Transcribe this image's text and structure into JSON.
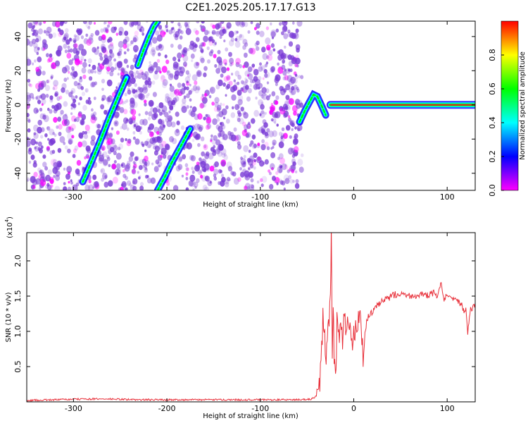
{
  "title": "C2E1.2025.205.17.17.G13",
  "chart_data": [
    {
      "type": "heatmap",
      "xlabel": "Height of straight line (km)",
      "ylabel": "Frequency (Hz)",
      "xlim": [
        -350,
        130
      ],
      "ylim": [
        -50,
        49
      ],
      "xticks": [
        "-300",
        "-200",
        "-100",
        "0",
        "100"
      ],
      "yticks": [
        "-40",
        "-20",
        "0",
        "20",
        "40"
      ],
      "colorbar": {
        "label": "Normalized spectral amplitude",
        "range": [
          0,
          1
        ],
        "ticks": [
          "0.0",
          "0.2",
          "0.4",
          "0.6",
          "0.8"
        ]
      },
      "noise_region_x": [
        -350,
        -55
      ],
      "ridges": [
        {
          "x": [
            -290,
            -282,
            -272,
            -262,
            -252,
            -243
          ],
          "y": [
            -45,
            -35,
            -22,
            -8,
            5,
            16
          ]
        },
        {
          "x": [
            -231,
            -225,
            -219,
            -214,
            -210
          ],
          "y": [
            23,
            32,
            40,
            46,
            49
          ]
        },
        {
          "x": [
            -210,
            -202,
            -195,
            -187,
            -180,
            -175
          ],
          "y": [
            -50,
            -42,
            -34,
            -26,
            -19,
            -14
          ]
        },
        {
          "x": [
            -58,
            -52,
            -47,
            -43,
            -39,
            -34,
            -30
          ],
          "y": [
            -10,
            -3,
            2,
            6,
            5,
            -1,
            -6
          ]
        },
        {
          "x": [
            -25,
            0,
            40,
            80,
            100,
            130
          ],
          "y": [
            0,
            0,
            0,
            0,
            0,
            0
          ]
        }
      ],
      "colors": {
        "scale": [
          "#ff00ff",
          "#0000ff",
          "#00ffff",
          "#00ff00",
          "#ffff00",
          "#ff0000"
        ],
        "noise": "#7a3bd6",
        "line": "#e8202a"
      }
    },
    {
      "type": "line",
      "xlabel": "Height of straight line (km)",
      "ylabel": "SNR (10 * v/v)",
      "exponent_label": "(x10",
      "exponent_sup": "4",
      "exponent_close": ")",
      "xlim": [
        -350,
        130
      ],
      "ylim": [
        0,
        2.4
      ],
      "xticks": [
        "-300",
        "-200",
        "-100",
        "0",
        "100"
      ],
      "yticks": [
        "0.5",
        "1.0",
        "1.5",
        "2.0"
      ],
      "series": [
        {
          "color": "#e8303a",
          "x": [
            -350,
            -320,
            -290,
            -260,
            -230,
            -200,
            -170,
            -140,
            -110,
            -80,
            -60,
            -45,
            -40,
            -37,
            -35,
            -33,
            -31,
            -30,
            -29,
            -27,
            -25,
            -24,
            -23,
            -22,
            -21,
            -20,
            -19,
            -18,
            -16,
            -14,
            -12,
            -10,
            -8,
            -6,
            -4,
            -2,
            0,
            2,
            5,
            8,
            10,
            12,
            15,
            20,
            25,
            30,
            35,
            40,
            50,
            60,
            70,
            80,
            85,
            90,
            93,
            96,
            100,
            105,
            110,
            115,
            118,
            120,
            122,
            125,
            128,
            130
          ],
          "y": [
            0.02,
            0.03,
            0.04,
            0.04,
            0.03,
            0.03,
            0.03,
            0.03,
            0.03,
            0.03,
            0.03,
            0.04,
            0.08,
            0.2,
            0.5,
            1.2,
            0.9,
            0.5,
            0.7,
            1.1,
            1.4,
            2.4,
            0.6,
            1.45,
            0.7,
            0.5,
            0.3,
            1.25,
            0.9,
            1.2,
            0.8,
            1.3,
            0.9,
            1.2,
            1.0,
            0.8,
            0.9,
            1.05,
            1.15,
            1.2,
            0.5,
            1.0,
            1.2,
            1.28,
            1.35,
            1.42,
            1.45,
            1.5,
            1.55,
            1.5,
            1.52,
            1.5,
            1.55,
            1.48,
            1.7,
            1.45,
            1.5,
            1.45,
            1.42,
            1.4,
            1.3,
            1.35,
            1.0,
            1.3,
            1.35,
            1.4
          ]
        }
      ]
    }
  ]
}
